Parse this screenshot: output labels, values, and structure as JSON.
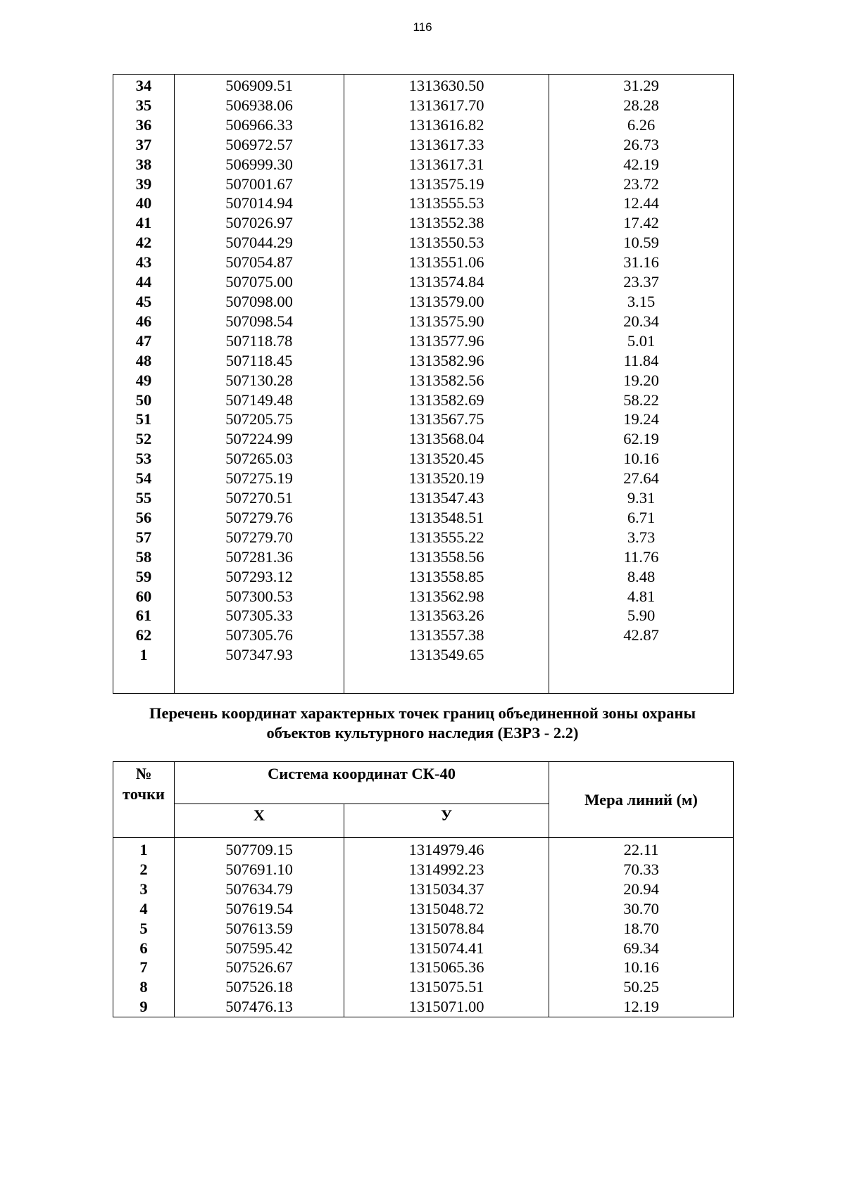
{
  "page_number": "116",
  "table1": {
    "rows": [
      [
        "34",
        "506909.51",
        "1313630.50",
        "31.29"
      ],
      [
        "35",
        "506938.06",
        "1313617.70",
        "28.28"
      ],
      [
        "36",
        "506966.33",
        "1313616.82",
        "6.26"
      ],
      [
        "37",
        "506972.57",
        "1313617.33",
        "26.73"
      ],
      [
        "38",
        "506999.30",
        "1313617.31",
        "42.19"
      ],
      [
        "39",
        "507001.67",
        "1313575.19",
        "23.72"
      ],
      [
        "40",
        "507014.94",
        "1313555.53",
        "12.44"
      ],
      [
        "41",
        "507026.97",
        "1313552.38",
        "17.42"
      ],
      [
        "42",
        "507044.29",
        "1313550.53",
        "10.59"
      ],
      [
        "43",
        "507054.87",
        "1313551.06",
        "31.16"
      ],
      [
        "44",
        "507075.00",
        "1313574.84",
        "23.37"
      ],
      [
        "45",
        "507098.00",
        "1313579.00",
        "3.15"
      ],
      [
        "46",
        "507098.54",
        "1313575.90",
        "20.34"
      ],
      [
        "47",
        "507118.78",
        "1313577.96",
        "5.01"
      ],
      [
        "48",
        "507118.45",
        "1313582.96",
        "11.84"
      ],
      [
        "49",
        "507130.28",
        "1313582.56",
        "19.20"
      ],
      [
        "50",
        "507149.48",
        "1313582.69",
        "58.22"
      ],
      [
        "51",
        "507205.75",
        "1313567.75",
        "19.24"
      ],
      [
        "52",
        "507224.99",
        "1313568.04",
        "62.19"
      ],
      [
        "53",
        "507265.03",
        "1313520.45",
        "10.16"
      ],
      [
        "54",
        "507275.19",
        "1313520.19",
        "27.64"
      ],
      [
        "55",
        "507270.51",
        "1313547.43",
        "9.31"
      ],
      [
        "56",
        "507279.76",
        "1313548.51",
        "6.71"
      ],
      [
        "57",
        "507279.70",
        "1313555.22",
        "3.73"
      ],
      [
        "58",
        "507281.36",
        "1313558.56",
        "11.76"
      ],
      [
        "59",
        "507293.12",
        "1313558.85",
        "8.48"
      ],
      [
        "60",
        "507300.53",
        "1313562.98",
        "4.81"
      ],
      [
        "61",
        "507305.33",
        "1313563.26",
        "5.90"
      ],
      [
        "62",
        "507305.76",
        "1313557.38",
        "42.87"
      ],
      [
        "1",
        "507347.93",
        "1313549.65",
        ""
      ]
    ]
  },
  "section2": {
    "heading_line1": "Перечень координат характерных точек границ объединенной зоны охраны",
    "heading_line2": "объектов культурного наследия (ЕЗРЗ - 2.2)"
  },
  "table2": {
    "header": {
      "point_no": "№\nточки",
      "point_no_line1": "№",
      "point_no_line2": "точки",
      "coord_system": "Система координат СК-40",
      "x": "Х",
      "y": "У",
      "line_measure": "Мера линий (м)"
    },
    "rows": [
      [
        "1",
        "507709.15",
        "1314979.46",
        "22.11"
      ],
      [
        "2",
        "507691.10",
        "1314992.23",
        "70.33"
      ],
      [
        "3",
        "507634.79",
        "1315034.37",
        "20.94"
      ],
      [
        "4",
        "507619.54",
        "1315048.72",
        "30.70"
      ],
      [
        "5",
        "507613.59",
        "1315078.84",
        "18.70"
      ],
      [
        "6",
        "507595.42",
        "1315074.41",
        "69.34"
      ],
      [
        "7",
        "507526.67",
        "1315065.36",
        "10.16"
      ],
      [
        "8",
        "507526.18",
        "1315075.51",
        "50.25"
      ],
      [
        "9",
        "507476.13",
        "1315071.00",
        "12.19"
      ]
    ]
  }
}
